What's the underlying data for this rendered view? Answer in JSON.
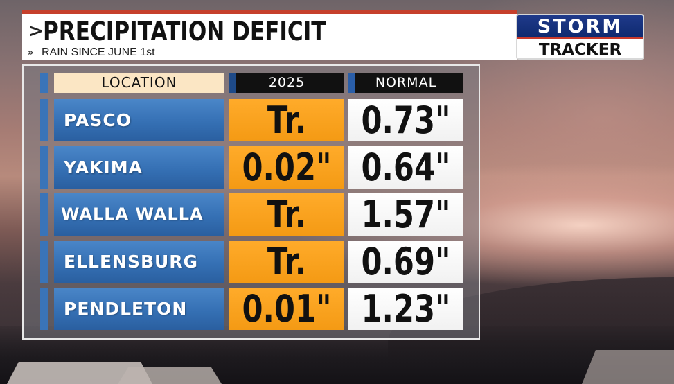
{
  "header": {
    "title": "PRECIPITATION DEFICIT",
    "subtitle": "RAIN SINCE JUNE 1st",
    "title_chevron": ">",
    "subtitle_chevron": "»"
  },
  "logo": {
    "line1": "STORM",
    "line2": "TRACKER",
    "colors": {
      "blue": "#1f3a8a",
      "red": "#c83a2c"
    }
  },
  "table": {
    "columns": [
      "LOCATION",
      "2025",
      "NORMAL"
    ],
    "rows": [
      {
        "location": "PASCO",
        "year_2025": "Tr.",
        "normal": "0.73\""
      },
      {
        "location": "YAKIMA",
        "year_2025": "0.02\"",
        "normal": "0.64\""
      },
      {
        "location": "WALLA WALLA",
        "year_2025": "Tr.",
        "normal": "1.57\""
      },
      {
        "location": "ELLENSBURG",
        "year_2025": "Tr.",
        "normal": "0.69\""
      },
      {
        "location": "PENDLETON",
        "year_2025": "0.01\"",
        "normal": "1.23\""
      }
    ],
    "colors": {
      "location_cell": "#3a74b8",
      "year_cell": "#f7a11d",
      "normal_cell": "#ffffff",
      "header_location": "#fbe6c4",
      "header_dark": "#111111"
    }
  }
}
